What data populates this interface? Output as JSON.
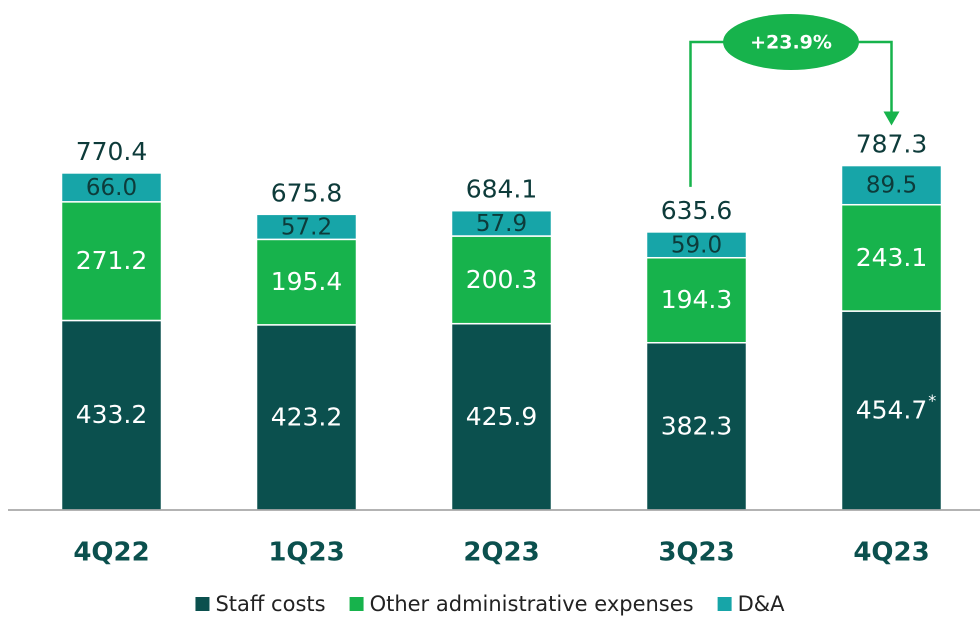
{
  "chart_data": {
    "type": "stacked_bar",
    "categories": [
      "4Q22",
      "1Q23",
      "2Q23",
      "3Q23",
      "4Q23"
    ],
    "series": [
      {
        "name": "Staff costs",
        "color": "#0b504e",
        "values": [
          433.2,
          423.2,
          425.9,
          382.3,
          454.7
        ]
      },
      {
        "name": "Other administrative expenses",
        "color": "#17b34c",
        "values": [
          271.2,
          195.4,
          200.3,
          194.3,
          243.1
        ]
      },
      {
        "name": "D&A",
        "color": "#17a5a8",
        "values": [
          66.0,
          57.2,
          57.9,
          59.0,
          89.5
        ],
        "value_labels": [
          "66.0",
          "57.2",
          "57.9",
          "59.0",
          "89.5"
        ]
      }
    ],
    "totals": [
      770.4,
      675.8,
      684.1,
      635.6,
      787.3
    ],
    "footnote_marker": "*",
    "annotation": "+23.9%",
    "ylim": [
      0,
      1000
    ],
    "legend": "bottom"
  }
}
